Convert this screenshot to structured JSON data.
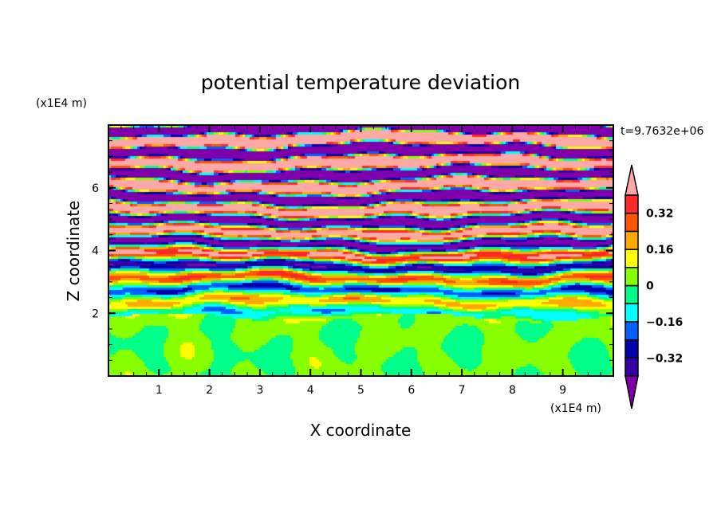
{
  "chart_data": {
    "type": "heatmap",
    "subtype": "filled-contour",
    "title": "potential temperature deviation",
    "xlabel": "X coordinate",
    "ylabel": "Z coordinate",
    "x_unit": "(x1E4 m)",
    "y_unit": "(x1E4 m)",
    "time_label": "t=9.7632e+06",
    "xlim": [
      0,
      10
    ],
    "ylim": [
      0,
      8
    ],
    "xticks": [
      1,
      2,
      3,
      4,
      5,
      6,
      7,
      8,
      9
    ],
    "yticks": [
      2,
      4,
      6
    ],
    "grid": false,
    "colorbar": {
      "placement": "right",
      "levels": [
        -0.4,
        -0.32,
        -0.24,
        -0.16,
        -0.08,
        0,
        0.08,
        0.16,
        0.24,
        0.32,
        0.4
      ],
      "tick_labels": [
        "0.32",
        "0.16",
        "0",
        "−0.16",
        "−0.32"
      ],
      "tick_values": [
        0.32,
        0.16,
        0,
        -0.16,
        -0.32
      ],
      "over_color": "#ffa8a8",
      "under_color": "#7f00aa",
      "colors": [
        "#3300a8",
        "#0000aa",
        "#0060ff",
        "#00ffff",
        "#00ff88",
        "#88ff00",
        "#ffff00",
        "#ffaa00",
        "#ff5500",
        "#ff2828"
      ]
    }
  }
}
